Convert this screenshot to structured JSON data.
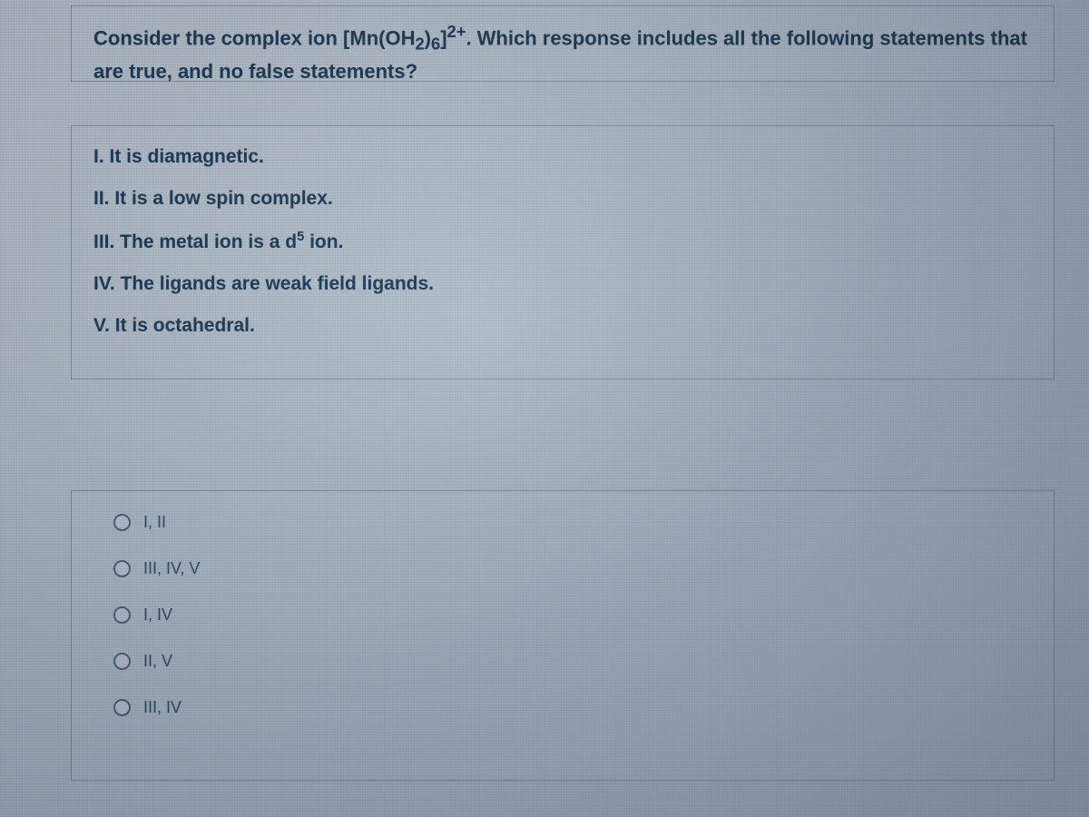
{
  "question": {
    "prefix": "Consider the complex ion [Mn(OH",
    "sub1": "2",
    "mid1": ")",
    "sub2": "6",
    "mid2": "]",
    "sup": "2+",
    "rest": ". Which response includes all the following statements that are ",
    "bold": "true",
    "tail": ", and no false statements?"
  },
  "statements": {
    "s1": "I. It is diamagnetic.",
    "s2": "II. It is a low spin complex.",
    "s3_pre": "III. The metal ion is a d",
    "s3_sup": "5",
    "s3_post": " ion.",
    "s4": "IV. The ligands are weak field ligands.",
    "s5": "V. It is octahedral."
  },
  "options": {
    "o1": "I, II",
    "o2": "III, IV, V",
    "o3": "I, IV",
    "o4": "II, V",
    "o5": "III, IV"
  },
  "colors": {
    "text": "#1d3a52",
    "option_text": "#304e66",
    "border": "#6e7d8c",
    "radio_border": "#4a637a",
    "bg_grad_top": "#c2cdd6",
    "bg_grad_bottom": "#9aa8b6"
  }
}
